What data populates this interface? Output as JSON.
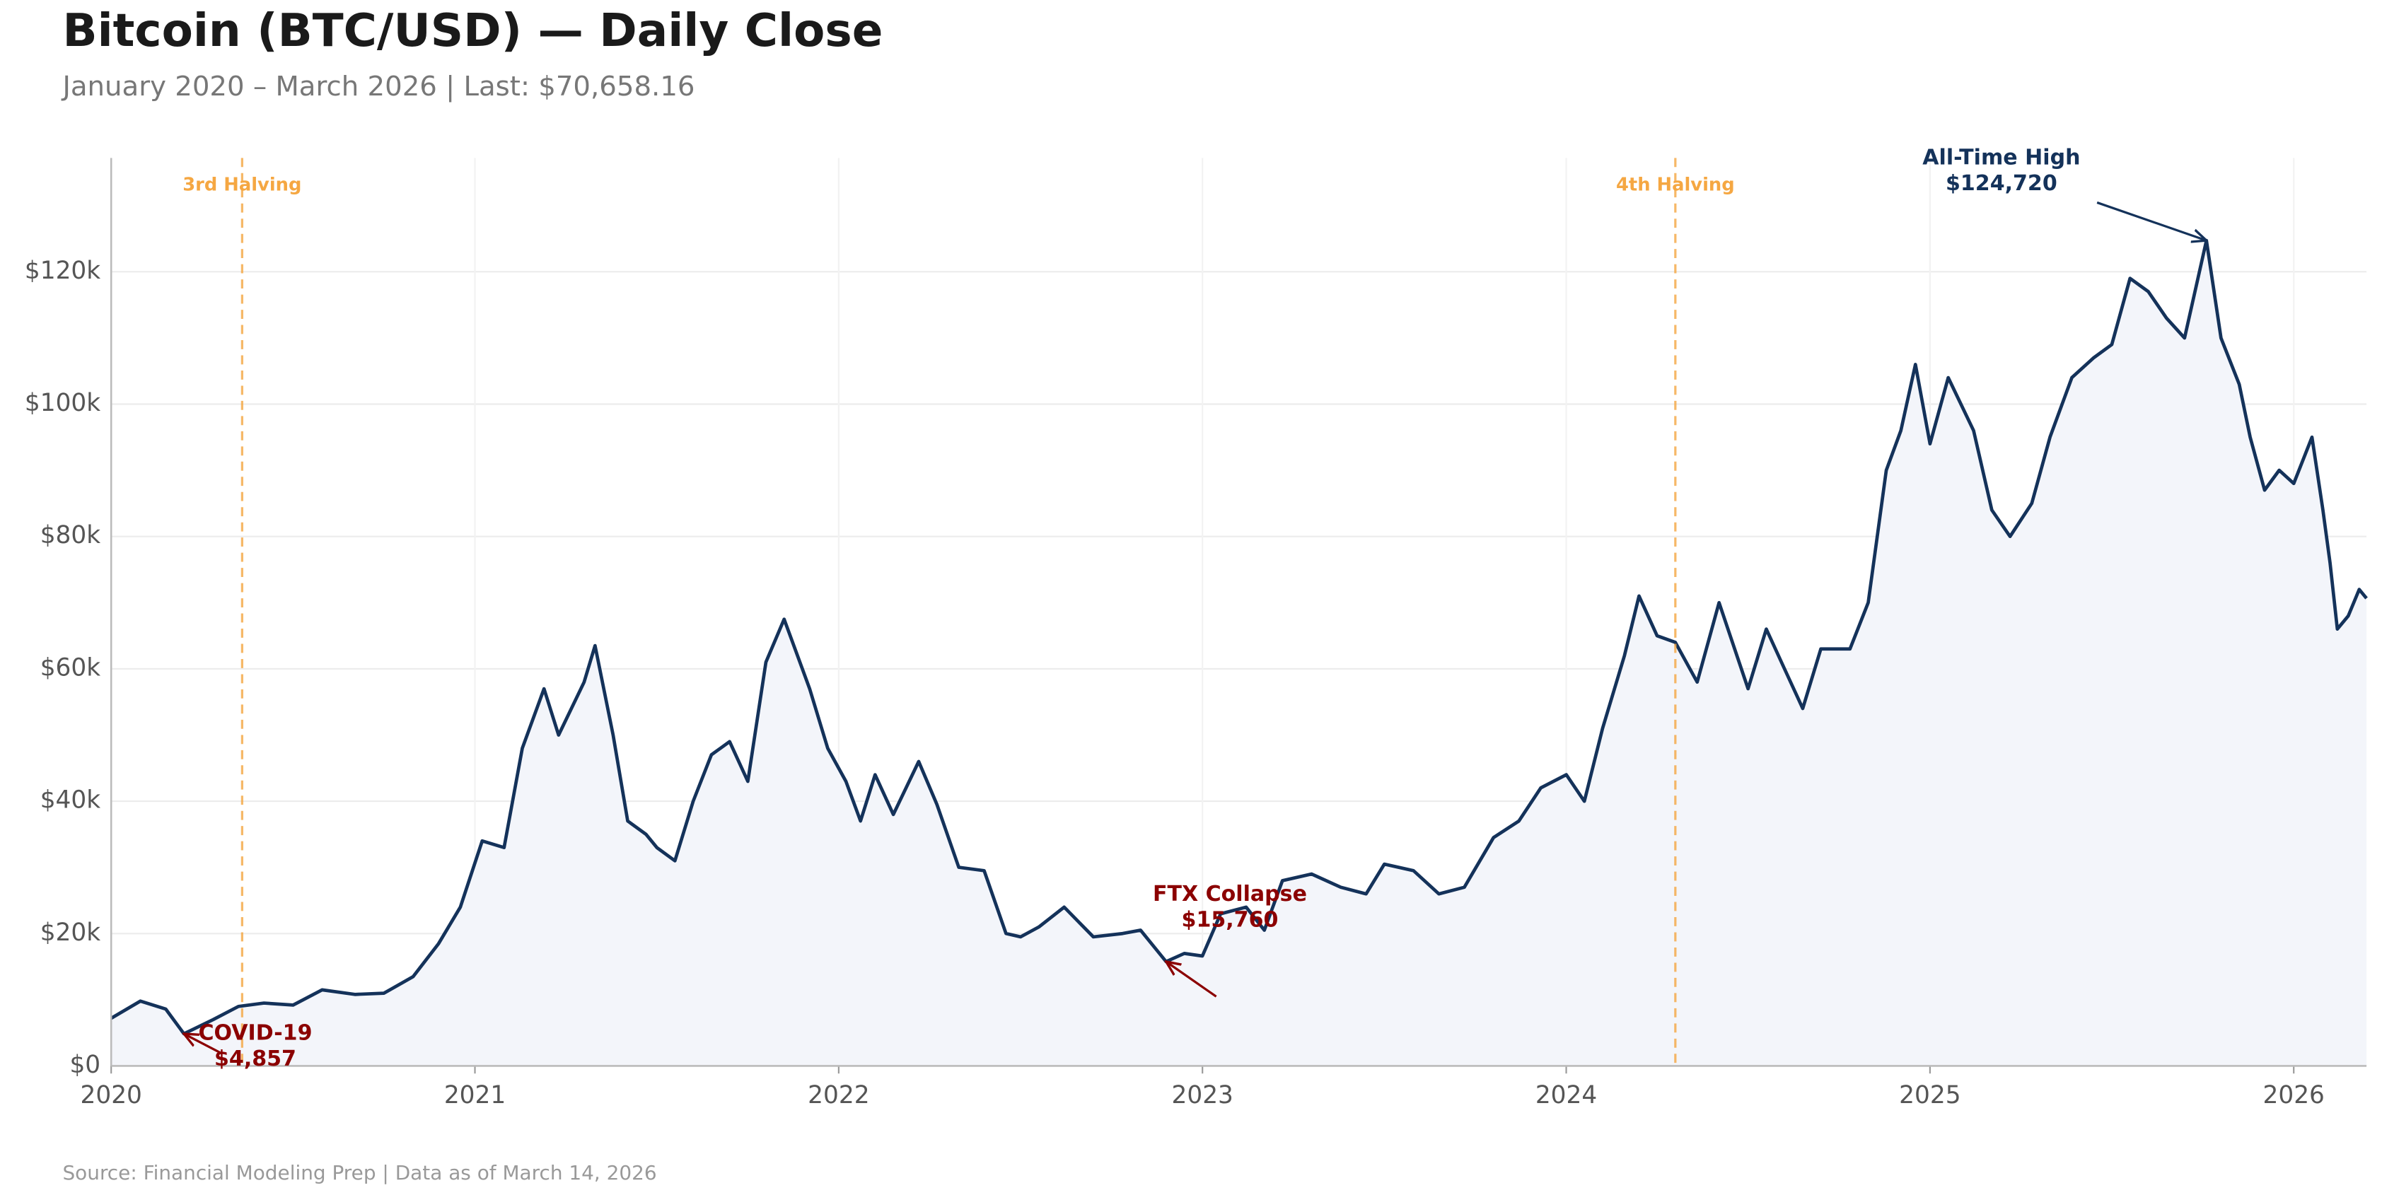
{
  "chart_data": {
    "type": "line",
    "title": "Bitcoin (BTC/USD) — Daily Close",
    "subtitle": "January 2020 – March 2026  |  Last: $70,658.16",
    "source": "Source: Financial Modeling Prep  |  Data as of March 14, 2026",
    "color": "#14325a",
    "area_color": "#f3f5fa",
    "grid": true,
    "x": [
      2020.0,
      2020.08,
      2020.15,
      2020.2,
      2020.28,
      2020.35,
      2020.42,
      2020.5,
      2020.58,
      2020.67,
      2020.75,
      2020.83,
      2020.9,
      2020.96,
      2021.02,
      2021.08,
      2021.13,
      2021.19,
      2021.23,
      2021.3,
      2021.33,
      2021.38,
      2021.42,
      2021.47,
      2021.5,
      2021.55,
      2021.6,
      2021.65,
      2021.7,
      2021.75,
      2021.8,
      2021.85,
      2021.92,
      2021.97,
      2022.02,
      2022.06,
      2022.1,
      2022.15,
      2022.22,
      2022.27,
      2022.33,
      2022.4,
      2022.46,
      2022.5,
      2022.55,
      2022.62,
      2022.7,
      2022.78,
      2022.83,
      2022.9,
      2022.95,
      2023.0,
      2023.05,
      2023.12,
      2023.17,
      2023.22,
      2023.3,
      2023.38,
      2023.45,
      2023.5,
      2023.58,
      2023.65,
      2023.72,
      2023.8,
      2023.87,
      2023.93,
      2024.0,
      2024.05,
      2024.1,
      2024.16,
      2024.2,
      2024.25,
      2024.3,
      2024.36,
      2024.42,
      2024.5,
      2024.55,
      2024.6,
      2024.65,
      2024.7,
      2024.78,
      2024.83,
      2024.88,
      2024.92,
      2024.96,
      2025.0,
      2025.05,
      2025.12,
      2025.17,
      2025.22,
      2025.28,
      2025.33,
      2025.39,
      2025.45,
      2025.5,
      2025.55,
      2025.6,
      2025.65,
      2025.7,
      2025.76,
      2025.8,
      2025.85,
      2025.88,
      2025.92,
      2025.96,
      2026.0,
      2026.05,
      2026.08,
      2026.1,
      2026.12,
      2026.15,
      2026.18,
      2026.2
    ],
    "values": [
      7200,
      9800,
      8600,
      4857,
      7000,
      9000,
      9500,
      9200,
      11500,
      10800,
      11000,
      13500,
      18500,
      24000,
      34000,
      33000,
      48000,
      57000,
      50000,
      58000,
      63500,
      50000,
      37000,
      35000,
      33000,
      31000,
      40000,
      47000,
      49000,
      43000,
      61000,
      67500,
      57000,
      48000,
      43000,
      37000,
      44000,
      38000,
      46000,
      39500,
      30000,
      29500,
      20000,
      19500,
      21000,
      24000,
      19500,
      20000,
      20500,
      15760,
      17000,
      16600,
      23000,
      24000,
      20500,
      28000,
      29000,
      27000,
      26000,
      30500,
      29500,
      26000,
      27000,
      34500,
      37000,
      42000,
      44000,
      40000,
      51000,
      62000,
      71000,
      65000,
      64000,
      58000,
      70000,
      57000,
      66000,
      60000,
      54000,
      63000,
      63000,
      70000,
      90000,
      96000,
      106000,
      94000,
      104000,
      96000,
      84000,
      80000,
      85000,
      95000,
      104000,
      107000,
      109000,
      119000,
      117000,
      113000,
      110000,
      124720,
      110000,
      103000,
      95000,
      87000,
      90000,
      88000,
      95000,
      84000,
      76000,
      66000,
      68000,
      72000,
      70658
    ],
    "xlim": [
      2020,
      2026.2
    ],
    "xticks": [
      2020,
      2021,
      2022,
      2023,
      2024,
      2025,
      2026
    ],
    "ylim": [
      0,
      137200
    ],
    "yticks": [
      {
        "value": 0,
        "label": "$0"
      },
      {
        "value": 20000,
        "label": "$20k"
      },
      {
        "value": 40000,
        "label": "$40k"
      },
      {
        "value": 60000,
        "label": "$60k"
      },
      {
        "value": 80000,
        "label": "$80k"
      },
      {
        "value": 100000,
        "label": "$100k"
      },
      {
        "value": 120000,
        "label": "$120k"
      }
    ],
    "halvings": [
      {
        "label": "3rd Halving",
        "x": 2020.36
      },
      {
        "label": "4th Halving",
        "x": 2024.3
      }
    ],
    "halving_color": "#f5a742",
    "annotations": [
      {
        "label": "COVID-19",
        "price": "$4,857",
        "x": 2020.2,
        "y": 4857,
        "color": "#8b0000"
      },
      {
        "label": "FTX Collapse",
        "price": "$15,760",
        "x": 2022.9,
        "y": 15760,
        "color": "#8b0000"
      },
      {
        "label": "All-Time High",
        "price": "$124,720",
        "x": 2025.76,
        "y": 124720,
        "color": "#14325a"
      }
    ]
  }
}
